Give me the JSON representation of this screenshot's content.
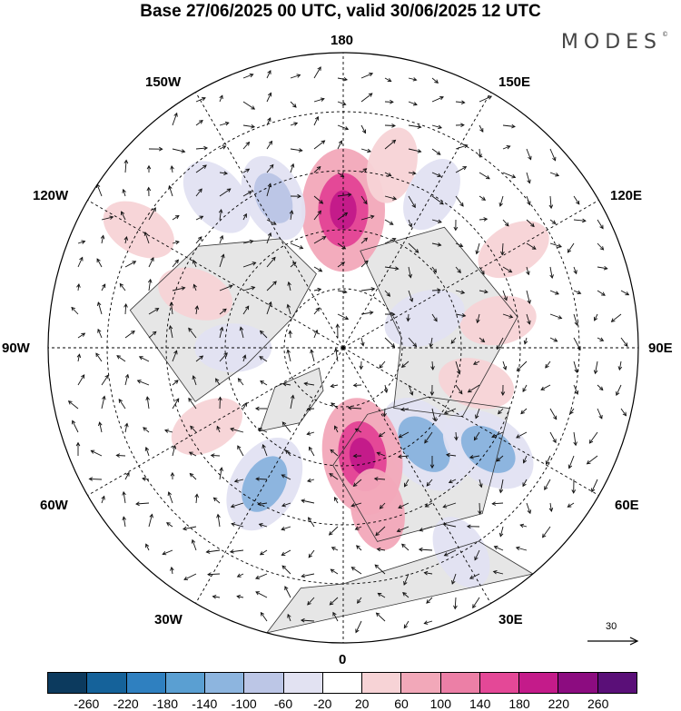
{
  "title": "Base 27/06/2025 00 UTC, valid 30/06/2025 12 UTC",
  "brand": "MODES",
  "brand_mark": "©",
  "longitude_labels": {
    "top": "180",
    "bottom": "0",
    "left": "90W",
    "right": "90E",
    "upper_left_1": "150W",
    "upper_left_2": "120W",
    "upper_right_1": "150E",
    "upper_right_2": "120E",
    "lower_left_1": "60W",
    "lower_left_2": "30W",
    "lower_right_1": "60E",
    "lower_right_2": "30E"
  },
  "reference_vector": {
    "label": "30"
  },
  "colorbar": {
    "colors": [
      "#0c3a5e",
      "#15629a",
      "#2f80c0",
      "#5a9fd2",
      "#8db5df",
      "#bcc6e6",
      "#e2e2f2",
      "#ffffff",
      "#f7d3d6",
      "#f2a8b9",
      "#ec7fa6",
      "#e44897",
      "#c41b8a",
      "#8c0c80",
      "#5a0f78"
    ],
    "tick_labels": [
      "-260",
      "-220",
      "-180",
      "-140",
      "-100",
      "-60",
      "-20",
      "20",
      "60",
      "100",
      "140",
      "180",
      "220",
      "260"
    ]
  },
  "anomaly_centers": [
    {
      "lon": 180,
      "lat": 55,
      "value": 200
    },
    {
      "lon": 165,
      "lat": 42,
      "value": 40
    },
    {
      "lon": 205,
      "lat": 48,
      "value": -80
    },
    {
      "lon": 220,
      "lat": 40,
      "value": -60
    },
    {
      "lon": 240,
      "lat": 30,
      "value": 40
    },
    {
      "lon": 150,
      "lat": 45,
      "value": -40
    },
    {
      "lon": 120,
      "lat": 40,
      "value": 40
    },
    {
      "lon": 100,
      "lat": 50,
      "value": 40
    },
    {
      "lon": 75,
      "lat": 55,
      "value": 40
    },
    {
      "lon": 40,
      "lat": 58,
      "value": -140
    },
    {
      "lon": 55,
      "lat": 45,
      "value": -120
    },
    {
      "lon": 10,
      "lat": 62,
      "value": 180
    },
    {
      "lon": 12,
      "lat": 48,
      "value": 60
    },
    {
      "lon": 330,
      "lat": 50,
      "value": -120
    },
    {
      "lon": 300,
      "lat": 50,
      "value": 40
    },
    {
      "lon": 270,
      "lat": 62,
      "value": -40
    },
    {
      "lon": 30,
      "lat": 30,
      "value": -40
    },
    {
      "lon": 110,
      "lat": 68,
      "value": -60
    },
    {
      "lon": 250,
      "lat": 50,
      "value": 40
    }
  ]
}
